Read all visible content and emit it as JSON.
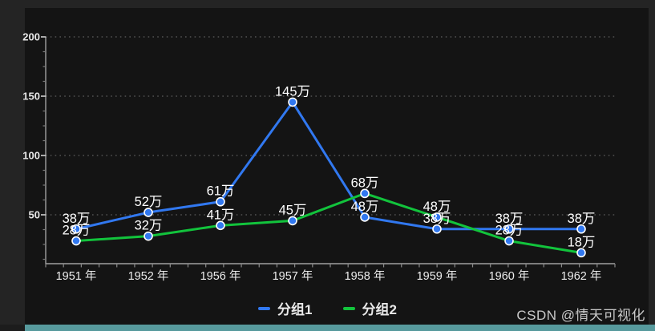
{
  "frame": {
    "background": "#242424",
    "panel_background": "#141414",
    "bottom_bar_color": "#579a9d",
    "corner_color": "#1c1c1c"
  },
  "watermark": "CSDN @情天可视化",
  "legend": {
    "items": [
      {
        "label": "分组1",
        "color": "#3178f0"
      },
      {
        "label": "分组2",
        "color": "#12c33c"
      }
    ]
  },
  "chart_data": {
    "type": "line",
    "title": "",
    "xlabel": "",
    "ylabel": "",
    "categories": [
      "1951 年",
      "1952 年",
      "1956 年",
      "1957 年",
      "1958 年",
      "1959 年",
      "1960 年",
      "1962 年"
    ],
    "series": [
      {
        "name": "分组1",
        "color": "#3178f0",
        "values": [
          38,
          52,
          61,
          145,
          48,
          38,
          38,
          38
        ]
      },
      {
        "name": "分组2",
        "color": "#12c33c",
        "values": [
          28,
          32,
          41,
          45,
          68,
          48,
          28,
          18
        ]
      }
    ],
    "label_suffix": "万",
    "marker": {
      "fill": "#3178f0",
      "stroke": "#ffffff"
    },
    "y_axis": {
      "ticks": [
        50,
        100,
        150,
        200
      ],
      "ylim": [
        9,
        200
      ]
    },
    "grid": {
      "horizontal_dotted": true,
      "color": "#525252"
    },
    "axis_color": "#a0a0a0",
    "axis_label_color": "#ededed",
    "data_label_color": "#ffffff",
    "legend_position": "bottom-center"
  }
}
